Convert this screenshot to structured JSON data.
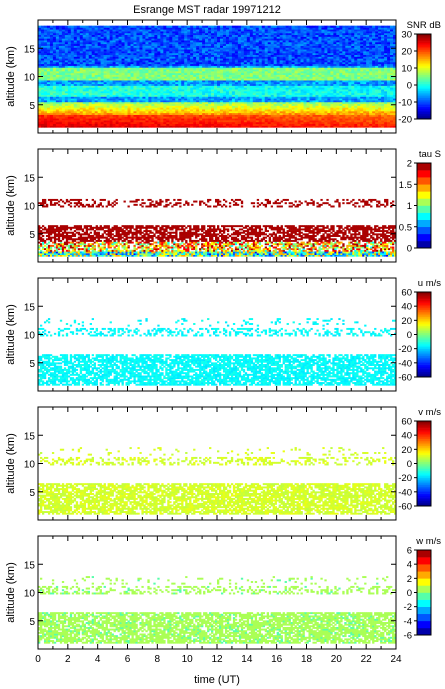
{
  "figure": {
    "title": "Esrange MST radar 19971212",
    "xlabel": "time (UT)"
  },
  "chart_data": [
    {
      "type": "heatmap",
      "quantity": "SNR",
      "colorbar_label": "SNR dB",
      "ylabel": "altitude (km)",
      "xlim": [
        0,
        24
      ],
      "ylim": [
        0,
        20
      ],
      "x_ticks": [
        0,
        2,
        4,
        6,
        8,
        10,
        12,
        14,
        16,
        18,
        20,
        22,
        24
      ],
      "y_ticks": [
        5,
        10,
        15
      ],
      "clim": [
        -20,
        30
      ],
      "colorbar_ticks": [
        -20,
        -10,
        0,
        10,
        20,
        30
      ],
      "colormap": "jet"
    },
    {
      "type": "heatmap",
      "quantity": "tau",
      "colorbar_label": "tau S",
      "ylabel": "altitude (km)",
      "xlim": [
        0,
        24
      ],
      "ylim": [
        0,
        20
      ],
      "x_ticks": [
        0,
        2,
        4,
        6,
        8,
        10,
        12,
        14,
        16,
        18,
        20,
        22,
        24
      ],
      "y_ticks": [
        5,
        10,
        15
      ],
      "clim": [
        0,
        2
      ],
      "colorbar_ticks": [
        0,
        0.5,
        1,
        1.5,
        2
      ],
      "colormap": "jet-discrete"
    },
    {
      "type": "heatmap",
      "quantity": "u",
      "colorbar_label": "u m/s",
      "ylabel": "altitude (km)",
      "xlim": [
        0,
        24
      ],
      "ylim": [
        0,
        20
      ],
      "x_ticks": [
        0,
        2,
        4,
        6,
        8,
        10,
        12,
        14,
        16,
        18,
        20,
        22,
        24
      ],
      "y_ticks": [
        5,
        10,
        15
      ],
      "clim": [
        -60,
        60
      ],
      "colorbar_ticks": [
        -60,
        -40,
        -20,
        0,
        20,
        40,
        60
      ],
      "colormap": "jet"
    },
    {
      "type": "heatmap",
      "quantity": "v",
      "colorbar_label": "v m/s",
      "ylabel": "altitude (km)",
      "xlim": [
        0,
        24
      ],
      "ylim": [
        0,
        20
      ],
      "x_ticks": [
        0,
        2,
        4,
        6,
        8,
        10,
        12,
        14,
        16,
        18,
        20,
        22,
        24
      ],
      "y_ticks": [
        5,
        10,
        15
      ],
      "clim": [
        -60,
        60
      ],
      "colorbar_ticks": [
        -60,
        -40,
        -20,
        0,
        20,
        40,
        60
      ],
      "colormap": "jet"
    },
    {
      "type": "heatmap",
      "quantity": "w",
      "colorbar_label": "w m/s",
      "ylabel": "altitude (km)",
      "xlim": [
        0,
        24
      ],
      "ylim": [
        0,
        20
      ],
      "x_ticks": [
        0,
        2,
        4,
        6,
        8,
        10,
        12,
        14,
        16,
        18,
        20,
        22,
        24
      ],
      "y_ticks": [
        5,
        10,
        15
      ],
      "clim": [
        -6,
        6
      ],
      "colorbar_ticks": [
        -6,
        -4,
        -2,
        0,
        2,
        4,
        6
      ],
      "colormap": "jet-discrete"
    }
  ]
}
